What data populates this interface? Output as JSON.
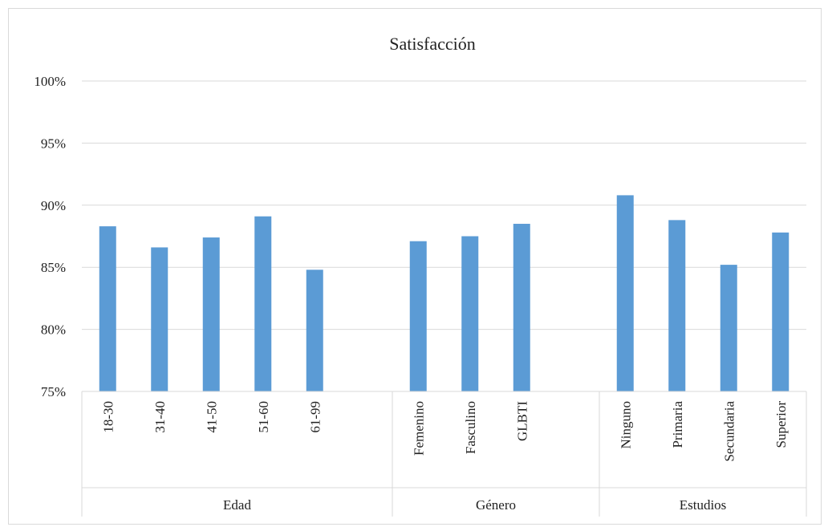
{
  "chart_data": {
    "type": "bar",
    "title": "Satisfacción",
    "xlabel": "",
    "ylabel": "",
    "ylim": [
      75,
      100
    ],
    "ytick_values": [
      75,
      80,
      85,
      90,
      95,
      100
    ],
    "ytick_labels": [
      "75%",
      "80%",
      "85%",
      "90%",
      "95%",
      "100%"
    ],
    "grid": true,
    "legend": "none",
    "bar_color": "#5B9BD5",
    "groups": [
      {
        "label": "Edad",
        "categories": [
          "18-30",
          "31-40",
          "41-50",
          "51-60",
          "61-99",
          ""
        ],
        "values": [
          88.3,
          86.6,
          87.4,
          89.1,
          84.8,
          null
        ]
      },
      {
        "label": "Género",
        "categories": [
          "Femenino",
          "Fasculino",
          "GLBTI",
          ""
        ],
        "values": [
          87.1,
          87.5,
          88.5,
          null
        ]
      },
      {
        "label": "Estudios",
        "categories": [
          "Ninguno",
          "Primaria",
          "Secundaria",
          "Superior"
        ],
        "values": [
          90.8,
          88.8,
          85.2,
          87.8
        ]
      }
    ]
  }
}
